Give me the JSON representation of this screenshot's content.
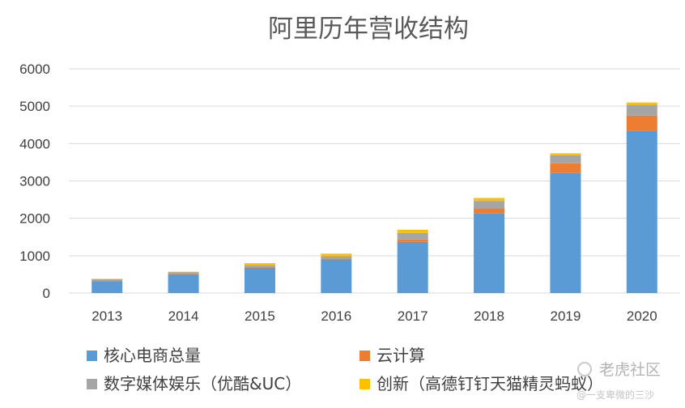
{
  "chart_data": {
    "type": "bar",
    "stacked": true,
    "title": "阿里历年营收结构",
    "categories": [
      "2013",
      "2014",
      "2015",
      "2016",
      "2017",
      "2018",
      "2019",
      "2020"
    ],
    "ylim": [
      0,
      6000
    ],
    "yticks": [
      0,
      1000,
      2000,
      3000,
      4000,
      5000,
      6000
    ],
    "grid": true,
    "legend_position": "bottom",
    "series": [
      {
        "name": "核心电商总量",
        "color": "#5B9BD5",
        "values": [
          320,
          500,
          680,
          900,
          1370,
          2130,
          3210,
          4350
        ]
      },
      {
        "name": "云计算",
        "color": "#ED7D31",
        "values": [
          5,
          10,
          20,
          25,
          65,
          135,
          260,
          400
        ]
      },
      {
        "name": "数字媒体娱乐（优酷&UC）",
        "color": "#A5A5A5",
        "values": [
          50,
          50,
          50,
          60,
          170,
          200,
          220,
          290
        ]
      },
      {
        "name": "创新（高德钉钉天猫精灵蚂蚁）",
        "color": "#FFC000",
        "values": [
          5,
          10,
          50,
          70,
          90,
          80,
          50,
          60
        ]
      }
    ]
  },
  "watermark": {
    "brand": "老虎社区",
    "user": "@一支卑微的三沙"
  }
}
